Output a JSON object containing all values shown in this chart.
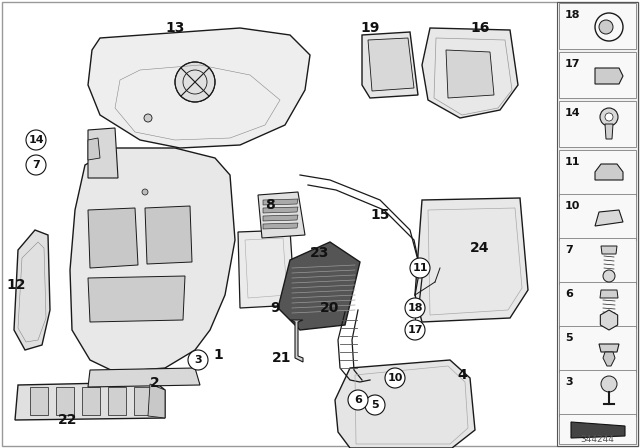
{
  "bg_color": "#ffffff",
  "diagram_number": "344244",
  "lc": "#1a1a1a",
  "fc_main": "#f2f2f2",
  "fc_dark": "#d0d0d0",
  "fc_mid": "#e8e8e8",
  "fc_white": "#ffffff",
  "panel_bg": "#f0f0f0",
  "panel_lc": "#555555"
}
